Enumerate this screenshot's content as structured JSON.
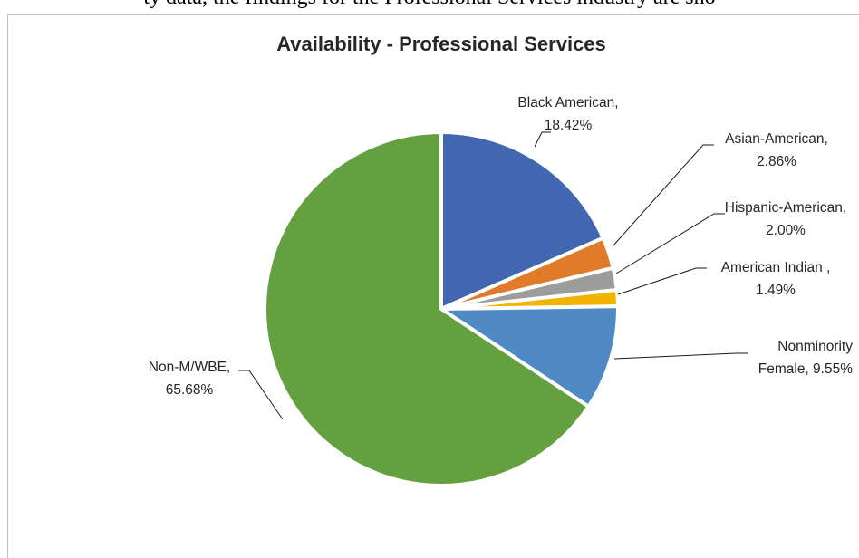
{
  "page": {
    "clipped_text": "ty data, the findings for the Professional Services industry are sho"
  },
  "chart_data": {
    "type": "pie",
    "title": "Availability - Professional Services",
    "slices": [
      {
        "label_line1": "Black American,",
        "label_line2": "18.42%",
        "name": "Black American",
        "value": 18.42,
        "color": "#4167b1"
      },
      {
        "label_line1": "Asian-American,",
        "label_line2": "2.86%",
        "name": "Asian-American",
        "value": 2.86,
        "color": "#e07b2a"
      },
      {
        "label_line1": "Hispanic-American,",
        "label_line2": "2.00%",
        "name": "Hispanic-American",
        "value": 2.0,
        "color": "#9c9c9c"
      },
      {
        "label_line1": "American Indian ,",
        "label_line2": "1.49%",
        "name": "American Indian",
        "value": 1.49,
        "color": "#f0b400"
      },
      {
        "label_line1": "Nonminority",
        "label_line2": "Female, 9.55%",
        "name": "Nonminority Female",
        "value": 9.55,
        "color": "#4f8ac4"
      },
      {
        "label_line1": "Non-M/WBE,",
        "label_line2": "65.68%",
        "name": "Non-M/WBE",
        "value": 65.68,
        "color": "#65a040"
      }
    ]
  }
}
